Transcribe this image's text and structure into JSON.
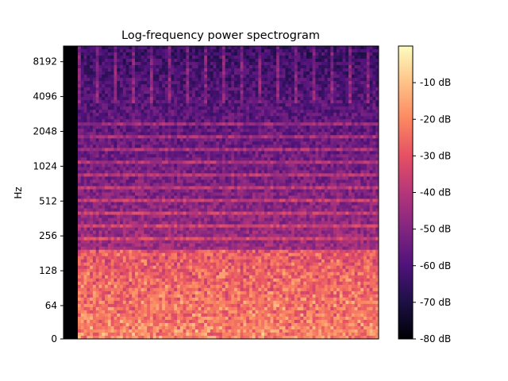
{
  "chart_data": {
    "type": "heatmap",
    "title": "Log-frequency power spectrogram",
    "xlabel": "",
    "ylabel": "Hz",
    "y_scale": "log-frequency",
    "y_ticks": [
      {
        "value": 0,
        "label": "0"
      },
      {
        "value": 64,
        "label": "64"
      },
      {
        "value": 128,
        "label": "128"
      },
      {
        "value": 256,
        "label": "256"
      },
      {
        "value": 512,
        "label": "512"
      },
      {
        "value": 1024,
        "label": "1024"
      },
      {
        "value": 2048,
        "label": "2048"
      },
      {
        "value": 4096,
        "label": "4096"
      },
      {
        "value": 8192,
        "label": "8192"
      }
    ],
    "ylim": [
      0,
      11025
    ],
    "colorbar": {
      "unit": "dB",
      "range": [
        -80,
        0
      ],
      "ticks": [
        {
          "value": -10,
          "label": "-10 dB"
        },
        {
          "value": -20,
          "label": "-20 dB"
        },
        {
          "value": -30,
          "label": "-30 dB"
        },
        {
          "value": -40,
          "label": "-40 dB"
        },
        {
          "value": -50,
          "label": "-50 dB"
        },
        {
          "value": -60,
          "label": "-60 dB"
        },
        {
          "value": -70,
          "label": "-70 dB"
        },
        {
          "value": -80,
          "label": "-80 dB"
        }
      ],
      "colormap": "magma",
      "colors": [
        "#000004",
        "#1c1044",
        "#4f127b",
        "#812581",
        "#b5367a",
        "#e55064",
        "#fb8761",
        "#fec287",
        "#fcfdbf"
      ]
    },
    "grid": false
  }
}
